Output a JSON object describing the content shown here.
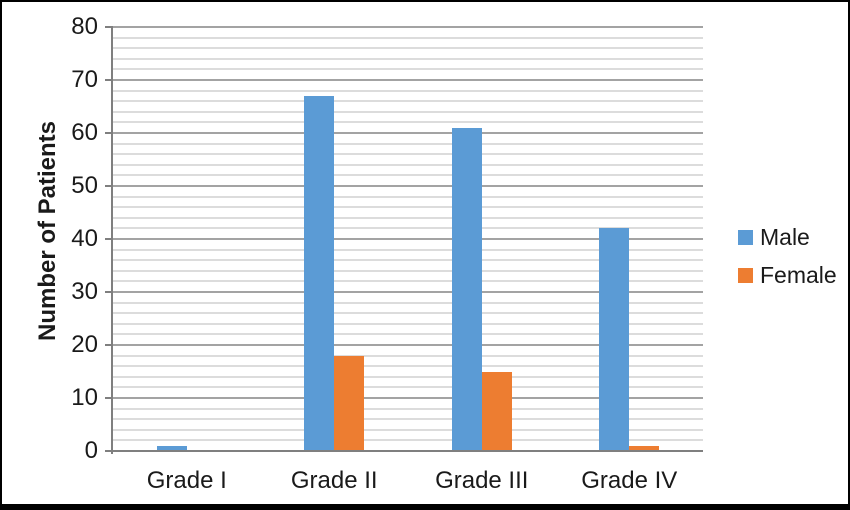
{
  "chart_data": {
    "type": "bar",
    "title": "",
    "xlabel": "",
    "ylabel": "Number of Patients",
    "categories": [
      "Grade I",
      "Grade II",
      "Grade III",
      "Grade IV"
    ],
    "series": [
      {
        "name": "Male",
        "color": "#5B9BD5",
        "values": [
          1,
          67,
          61,
          42
        ]
      },
      {
        "name": "Female",
        "color": "#ED7D31",
        "values": [
          0,
          18,
          15,
          1
        ]
      }
    ],
    "ylim": [
      0,
      80
    ],
    "yticks": [
      0,
      10,
      20,
      30,
      40,
      50,
      60,
      70,
      80
    ],
    "ytick_step": 10,
    "minor_gridline_step": 2,
    "grid": "on",
    "legend_position": "right",
    "legend_labels": [
      "Male",
      "Female"
    ]
  },
  "colors": {
    "male_bar": "#5B9BD5",
    "female_bar": "#ED7D31",
    "major_gridline": "#A3A3A3",
    "minor_gridline": "#DCDCDC",
    "axis_line": "#7F7F7F",
    "text": "#1A1A1A",
    "frame_border": "#000000",
    "background": "#FFFFFF"
  }
}
